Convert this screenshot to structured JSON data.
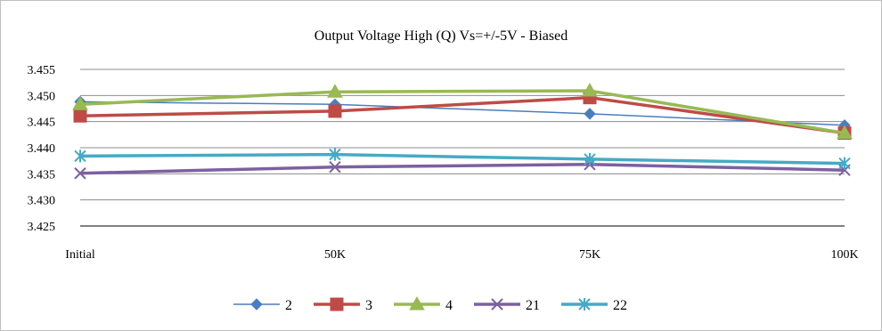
{
  "chart_data": {
    "type": "line",
    "title": "Output Voltage High (Q) Vs=+/-5V - Biased",
    "categories": [
      "Initial",
      "50K",
      "75K",
      "100K"
    ],
    "ylim": [
      3.425,
      3.455
    ],
    "yticks": [
      "3.425",
      "3.430",
      "3.435",
      "3.440",
      "3.445",
      "3.450",
      "3.455"
    ],
    "grid": true,
    "legend_position": "bottom",
    "series": [
      {
        "name": "2",
        "color": "#4a7ebb",
        "marker": "diamond",
        "stroke_width": 1.5,
        "values": [
          3.4488,
          3.4483,
          3.4465,
          3.4443
        ]
      },
      {
        "name": "3",
        "color": "#be4b48",
        "marker": "square",
        "stroke_width": 3.5,
        "values": [
          3.4461,
          3.447,
          3.4496,
          3.4428
        ]
      },
      {
        "name": "4",
        "color": "#98b954",
        "marker": "triangle",
        "stroke_width": 3.5,
        "values": [
          3.4483,
          3.4507,
          3.4509,
          3.4428
        ]
      },
      {
        "name": "21",
        "color": "#7d60a0",
        "marker": "x",
        "stroke_width": 3.5,
        "values": [
          3.4351,
          3.4363,
          3.4368,
          3.4357
        ]
      },
      {
        "name": "22",
        "color": "#46aac5",
        "marker": "star",
        "stroke_width": 3.5,
        "values": [
          3.4384,
          3.4387,
          3.4378,
          3.437
        ]
      }
    ]
  }
}
